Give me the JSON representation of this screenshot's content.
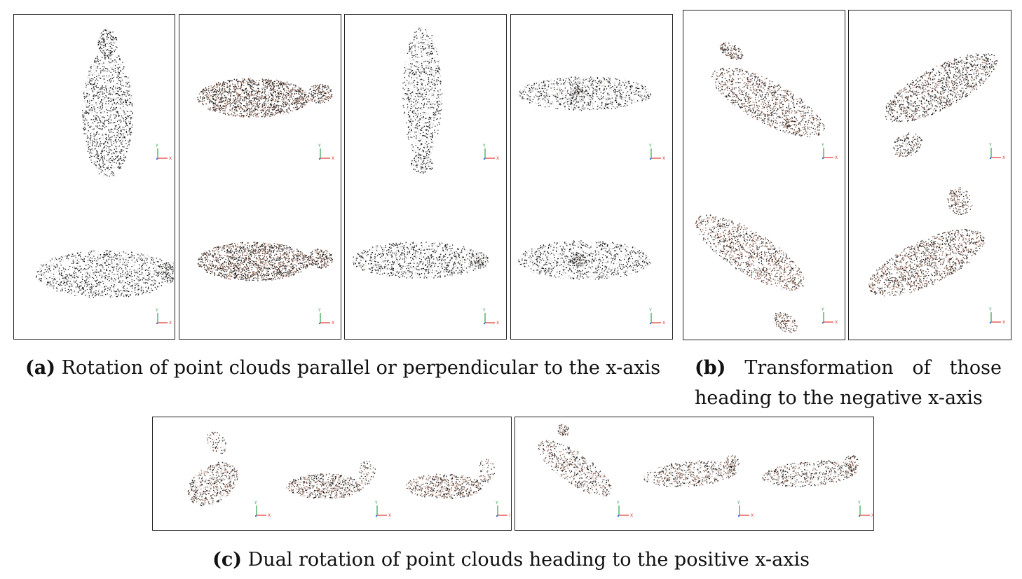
{
  "figure": {
    "axis_labels": {
      "y": "Y",
      "x": "X"
    },
    "colors": {
      "points_dark": "#1a1a1a",
      "points_brown": "#8a5a46",
      "points_light": "#d8d4d0",
      "axis_y": "#2aa34a",
      "axis_x": "#e0362c",
      "axis_z": "#3f6fd8"
    }
  },
  "captions": {
    "a": {
      "label": "(a)",
      "text": "Rotation of point clouds parallel or perpendicular to the x-axis"
    },
    "b": {
      "label": "(b)",
      "text": "Transformation of those heading to the negative x-axis"
    },
    "c": {
      "label": "(c)",
      "text": "Dual rotation of point clouds heading to the positive x-axis"
    }
  }
}
